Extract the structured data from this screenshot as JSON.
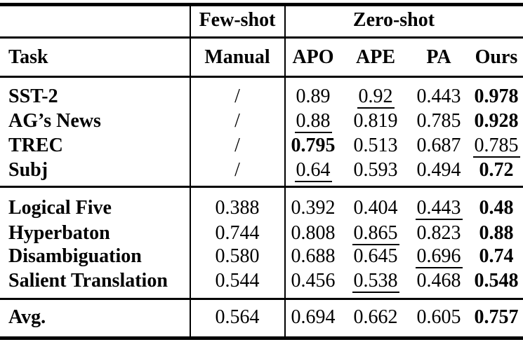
{
  "colors": {
    "text": "#000000",
    "background": "#ffffff"
  },
  "table": {
    "group_header": {
      "few_shot": "Few-shot",
      "zero_shot": "Zero-shot"
    },
    "columns": {
      "task": "Task",
      "manual": "Manual",
      "methods": [
        "APO",
        "APE",
        "PA",
        "Ours"
      ]
    },
    "sections": [
      {
        "rows": [
          {
            "task": "SST-2",
            "manual": "/",
            "values": [
              {
                "v": "0.89"
              },
              {
                "v": "0.92",
                "underline": true
              },
              {
                "v": "0.443"
              },
              {
                "v": "0.978",
                "bold": true
              }
            ]
          },
          {
            "task": "AG’s News",
            "manual": "/",
            "values": [
              {
                "v": "0.88",
                "underline": true
              },
              {
                "v": "0.819"
              },
              {
                "v": "0.785"
              },
              {
                "v": "0.928",
                "bold": true
              }
            ]
          },
          {
            "task": "TREC",
            "manual": "/",
            "values": [
              {
                "v": "0.795",
                "bold": true
              },
              {
                "v": "0.513"
              },
              {
                "v": "0.687"
              },
              {
                "v": "0.785",
                "underline": true
              }
            ]
          },
          {
            "task": "Subj",
            "manual": "/",
            "values": [
              {
                "v": "0.64",
                "underline": true
              },
              {
                "v": "0.593"
              },
              {
                "v": "0.494"
              },
              {
                "v": "0.72",
                "bold": true
              }
            ]
          }
        ]
      },
      {
        "rows": [
          {
            "task": "Logical Five",
            "manual": "0.388",
            "values": [
              {
                "v": "0.392"
              },
              {
                "v": "0.404"
              },
              {
                "v": "0.443",
                "underline": true
              },
              {
                "v": "0.48",
                "bold": true
              }
            ]
          },
          {
            "task": "Hyperbaton",
            "manual": "0.744",
            "values": [
              {
                "v": "0.808"
              },
              {
                "v": "0.865",
                "underline": true
              },
              {
                "v": "0.823"
              },
              {
                "v": "0.88",
                "bold": true
              }
            ]
          },
          {
            "task": "Disambiguation",
            "manual": "0.580",
            "values": [
              {
                "v": "0.688"
              },
              {
                "v": "0.645"
              },
              {
                "v": "0.696",
                "underline": true
              },
              {
                "v": "0.74",
                "bold": true
              }
            ]
          },
          {
            "task": "Salient Translation",
            "manual": "0.544",
            "values": [
              {
                "v": "0.456"
              },
              {
                "v": "0.538",
                "underline": true
              },
              {
                "v": "0.468"
              },
              {
                "v": "0.548",
                "bold": true
              }
            ]
          }
        ]
      }
    ],
    "avg_row": {
      "task": "Avg.",
      "manual": "0.564",
      "values": [
        {
          "v": "0.694"
        },
        {
          "v": "0.662"
        },
        {
          "v": "0.605"
        },
        {
          "v": "0.757",
          "bold": true
        }
      ]
    }
  }
}
